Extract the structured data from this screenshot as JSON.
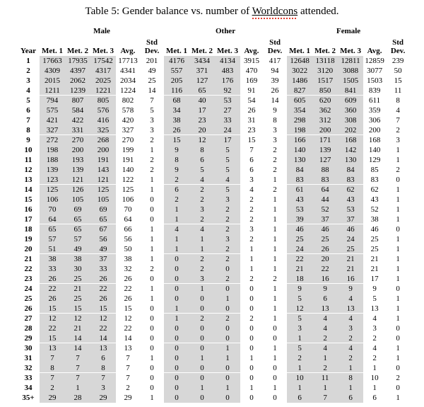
{
  "title": {
    "prefix": "Table 5: Gender balance vs. number of ",
    "misspelled_word": "Worldcons",
    "suffix": " attended."
  },
  "colors": {
    "shade": "#d7d7d7",
    "spellcheck_underline": "#e03c31",
    "text": "#000000",
    "background": "#ffffff"
  },
  "table": {
    "groups": [
      {
        "label": "Male"
      },
      {
        "label": "Other"
      },
      {
        "label": "Female"
      }
    ],
    "columns": {
      "year": "Year",
      "met1": "Met. 1",
      "met2": "Met. 2",
      "met3": "Met. 3",
      "avg": "Avg.",
      "std_line1": "Std",
      "std_line2": "Dev."
    },
    "rows": [
      [
        "1",
        "17663",
        "17935",
        "17542",
        "17713",
        "201",
        "4176",
        "3434",
        "4134",
        "3915",
        "417",
        "12648",
        "13118",
        "12811",
        "12859",
        "239"
      ],
      [
        "2",
        "4309",
        "4397",
        "4317",
        "4341",
        "49",
        "557",
        "371",
        "483",
        "470",
        "94",
        "3022",
        "3120",
        "3088",
        "3077",
        "50"
      ],
      [
        "3",
        "2015",
        "2062",
        "2025",
        "2034",
        "25",
        "205",
        "127",
        "176",
        "169",
        "39",
        "1486",
        "1517",
        "1505",
        "1503",
        "15"
      ],
      [
        "4",
        "1211",
        "1239",
        "1221",
        "1224",
        "14",
        "116",
        "65",
        "92",
        "91",
        "26",
        "827",
        "850",
        "841",
        "839",
        "11"
      ],
      [
        "5",
        "794",
        "807",
        "805",
        "802",
        "7",
        "68",
        "40",
        "53",
        "54",
        "14",
        "605",
        "620",
        "609",
        "611",
        "8"
      ],
      [
        "6",
        "575",
        "584",
        "576",
        "578",
        "5",
        "34",
        "17",
        "27",
        "26",
        "9",
        "354",
        "362",
        "360",
        "359",
        "4"
      ],
      [
        "7",
        "421",
        "422",
        "416",
        "420",
        "3",
        "38",
        "23",
        "33",
        "31",
        "8",
        "298",
        "312",
        "308",
        "306",
        "7"
      ],
      [
        "8",
        "327",
        "331",
        "325",
        "327",
        "3",
        "26",
        "20",
        "24",
        "23",
        "3",
        "198",
        "200",
        "202",
        "200",
        "2"
      ],
      [
        "9",
        "272",
        "270",
        "268",
        "270",
        "2",
        "15",
        "12",
        "17",
        "15",
        "3",
        "166",
        "171",
        "168",
        "168",
        "3"
      ],
      [
        "10",
        "198",
        "200",
        "200",
        "199",
        "1",
        "9",
        "8",
        "5",
        "7",
        "2",
        "140",
        "139",
        "142",
        "140",
        "1"
      ],
      [
        "11",
        "188",
        "193",
        "191",
        "191",
        "2",
        "8",
        "6",
        "5",
        "6",
        "2",
        "130",
        "127",
        "130",
        "129",
        "1"
      ],
      [
        "12",
        "139",
        "139",
        "143",
        "140",
        "2",
        "9",
        "5",
        "5",
        "6",
        "2",
        "84",
        "88",
        "84",
        "85",
        "2"
      ],
      [
        "13",
        "123",
        "121",
        "121",
        "122",
        "1",
        "2",
        "4",
        "4",
        "3",
        "1",
        "83",
        "83",
        "83",
        "83",
        "0"
      ],
      [
        "14",
        "125",
        "126",
        "125",
        "125",
        "1",
        "6",
        "2",
        "5",
        "4",
        "2",
        "61",
        "64",
        "62",
        "62",
        "1"
      ],
      [
        "15",
        "106",
        "105",
        "105",
        "106",
        "0",
        "2",
        "2",
        "3",
        "2",
        "1",
        "43",
        "44",
        "43",
        "43",
        "1"
      ],
      [
        "16",
        "70",
        "69",
        "69",
        "70",
        "0",
        "1",
        "3",
        "2",
        "2",
        "1",
        "53",
        "52",
        "53",
        "52",
        "1"
      ],
      [
        "17",
        "64",
        "65",
        "65",
        "64",
        "0",
        "1",
        "2",
        "2",
        "2",
        "1",
        "39",
        "37",
        "37",
        "38",
        "1"
      ],
      [
        "18",
        "65",
        "65",
        "67",
        "66",
        "1",
        "4",
        "4",
        "2",
        "3",
        "1",
        "46",
        "46",
        "46",
        "46",
        "0"
      ],
      [
        "19",
        "57",
        "57",
        "56",
        "56",
        "1",
        "1",
        "1",
        "3",
        "2",
        "1",
        "25",
        "25",
        "24",
        "25",
        "1"
      ],
      [
        "20",
        "51",
        "49",
        "49",
        "50",
        "1",
        "1",
        "1",
        "2",
        "1",
        "1",
        "24",
        "26",
        "25",
        "25",
        "1"
      ],
      [
        "21",
        "38",
        "38",
        "37",
        "38",
        "1",
        "0",
        "2",
        "2",
        "1",
        "1",
        "22",
        "20",
        "21",
        "21",
        "1"
      ],
      [
        "22",
        "33",
        "30",
        "33",
        "32",
        "2",
        "0",
        "2",
        "0",
        "1",
        "1",
        "21",
        "22",
        "21",
        "21",
        "1"
      ],
      [
        "23",
        "26",
        "25",
        "26",
        "26",
        "0",
        "0",
        "3",
        "2",
        "2",
        "2",
        "18",
        "16",
        "16",
        "17",
        "1"
      ],
      [
        "24",
        "22",
        "21",
        "22",
        "22",
        "1",
        "0",
        "1",
        "0",
        "0",
        "1",
        "9",
        "9",
        "9",
        "9",
        "0"
      ],
      [
        "25",
        "26",
        "25",
        "26",
        "26",
        "1",
        "0",
        "0",
        "1",
        "0",
        "1",
        "5",
        "6",
        "4",
        "5",
        "1"
      ],
      [
        "26",
        "15",
        "15",
        "15",
        "15",
        "0",
        "1",
        "0",
        "0",
        "0",
        "1",
        "12",
        "13",
        "13",
        "13",
        "1"
      ],
      [
        "27",
        "12",
        "12",
        "12",
        "12",
        "0",
        "1",
        "2",
        "2",
        "2",
        "1",
        "5",
        "4",
        "4",
        "4",
        "1"
      ],
      [
        "28",
        "22",
        "21",
        "22",
        "22",
        "0",
        "0",
        "0",
        "0",
        "0",
        "0",
        "3",
        "4",
        "3",
        "3",
        "0"
      ],
      [
        "29",
        "15",
        "14",
        "14",
        "14",
        "0",
        "0",
        "0",
        "0",
        "0",
        "0",
        "1",
        "2",
        "2",
        "2",
        "0"
      ],
      [
        "30",
        "13",
        "14",
        "13",
        "13",
        "0",
        "0",
        "0",
        "1",
        "0",
        "1",
        "5",
        "4",
        "4",
        "4",
        "1"
      ],
      [
        "31",
        "7",
        "7",
        "6",
        "7",
        "1",
        "0",
        "1",
        "1",
        "1",
        "1",
        "2",
        "1",
        "2",
        "2",
        "1"
      ],
      [
        "32",
        "8",
        "7",
        "8",
        "7",
        "0",
        "0",
        "0",
        "0",
        "0",
        "0",
        "1",
        "2",
        "1",
        "1",
        "0"
      ],
      [
        "33",
        "7",
        "7",
        "7",
        "7",
        "0",
        "0",
        "0",
        "0",
        "0",
        "0",
        "10",
        "11",
        "8",
        "10",
        "2"
      ],
      [
        "34",
        "2",
        "1",
        "3",
        "2",
        "0",
        "0",
        "1",
        "1",
        "1",
        "1",
        "1",
        "1",
        "1",
        "1",
        "0"
      ],
      [
        "35+",
        "29",
        "28",
        "29",
        "29",
        "1",
        "0",
        "0",
        "0",
        "0",
        "0",
        "6",
        "7",
        "6",
        "6",
        "1"
      ]
    ]
  }
}
